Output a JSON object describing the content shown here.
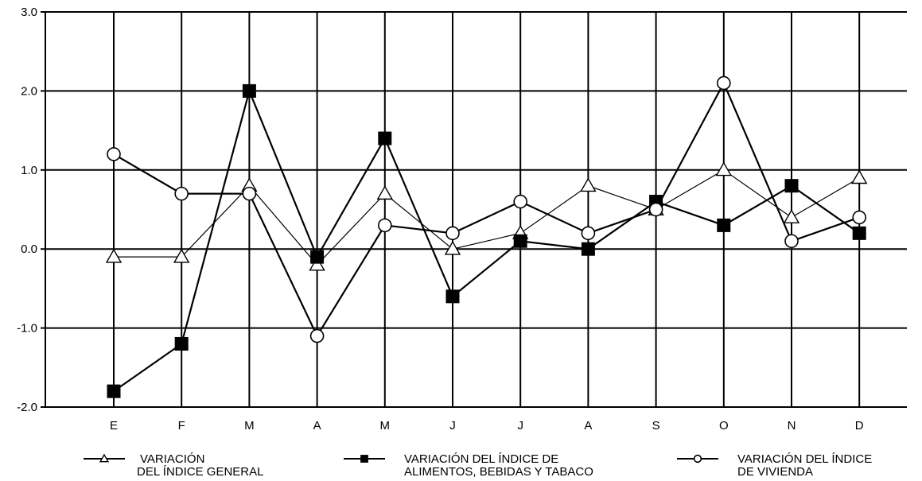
{
  "chart_data": {
    "type": "line",
    "title": "",
    "xlabel": "",
    "ylabel": "",
    "categories": [
      "E",
      "F",
      "M",
      "A",
      "M",
      "J",
      "J",
      "A",
      "S",
      "O",
      "N",
      "D"
    ],
    "ylim": [
      -2.0,
      3.0
    ],
    "y_ticks": [
      "3.0",
      "2.0",
      "1.0",
      "0.0",
      "-1.0",
      "-2.0"
    ],
    "y_tick_values": [
      3.0,
      2.0,
      1.0,
      0.0,
      -1.0,
      -2.0
    ],
    "grid": true,
    "legend_position": "bottom",
    "series": [
      {
        "name_lines": [
          "VARIACIÓN",
          "DEL ÍNDICE GENERAL"
        ],
        "marker": "triangle-open",
        "values": [
          -0.1,
          -0.1,
          0.8,
          -0.2,
          0.7,
          0.0,
          0.2,
          0.8,
          0.5,
          1.0,
          0.4,
          0.9
        ]
      },
      {
        "name_lines": [
          "VARIACIÓN DEL ÍNDICE DE",
          "ALIMENTOS, BEBIDAS Y TABACO"
        ],
        "marker": "square-filled",
        "values": [
          -1.8,
          -1.2,
          2.0,
          -0.1,
          1.4,
          -0.6,
          0.1,
          0.0,
          0.6,
          0.3,
          0.8,
          0.2
        ]
      },
      {
        "name_lines": [
          "VARIACIÓN DEL ÍNDICE",
          "DE VIVIENDA"
        ],
        "marker": "circle-open",
        "values": [
          1.2,
          0.7,
          0.7,
          -1.1,
          0.3,
          0.2,
          0.6,
          0.2,
          0.5,
          2.1,
          0.1,
          0.4
        ]
      }
    ]
  }
}
